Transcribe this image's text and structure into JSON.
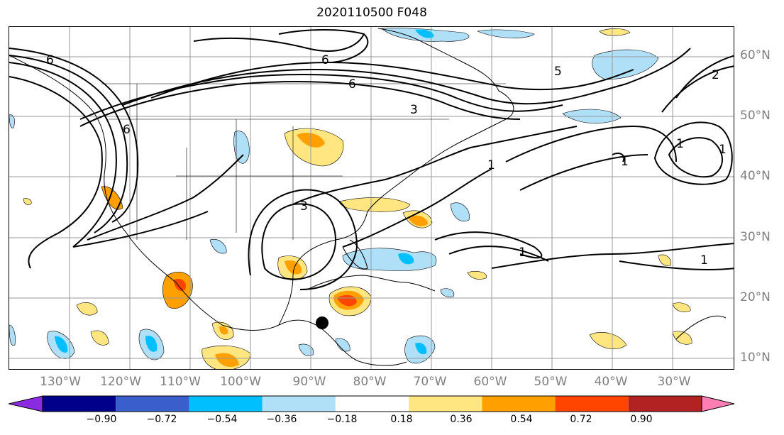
{
  "title": "2020110500 F048",
  "lon_labels": [
    "130°W",
    "120°W",
    "110°W",
    "100°W",
    "90°W",
    "80°W",
    "70°W",
    "60°W",
    "50°W",
    "40°W",
    "30°W"
  ],
  "lat_labels": [
    "60°N",
    "50°N",
    "40°N",
    "30°N",
    "20°N",
    "10°N"
  ],
  "contour_labels": [
    "6",
    "6",
    "6",
    "6",
    "3",
    "5",
    "2",
    "1",
    "1",
    "1",
    "3",
    "1",
    "1",
    "1"
  ],
  "colorbar": {
    "ticks": [
      "−0.90",
      "−0.72",
      "−0.54",
      "−0.36",
      "−0.18",
      "0.18",
      "0.36",
      "0.54",
      "0.72",
      "0.90"
    ],
    "colors": [
      "#8a2be2",
      "#00008b",
      "#3a5fcd",
      "#00bfff",
      "#b0e0f8",
      "#ffffff",
      "#ffe680",
      "#ffa000",
      "#ff4500",
      "#b22222",
      "#ff7fb4"
    ]
  },
  "marker": "storm-center"
}
